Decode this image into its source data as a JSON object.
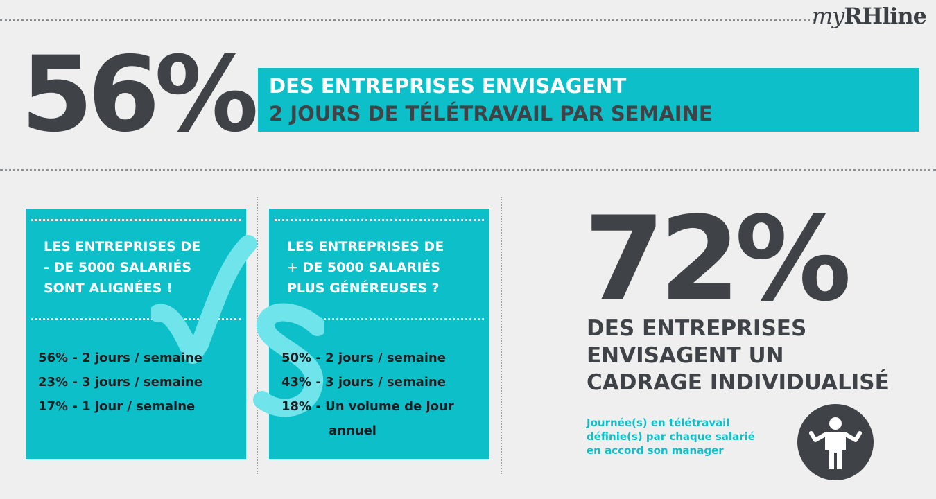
{
  "brand": {
    "prefix": "my",
    "suffix": "RHline"
  },
  "headline": {
    "percent": "56%",
    "line1": "DES ENTREPRISES ENVISAGENT",
    "line2": "2 JOURS DE TÉLÉTRAVAIL PAR SEMAINE"
  },
  "cards": [
    {
      "title": [
        "LES ENTREPRISES DE",
        "- DE 5000 SALARIÉS",
        "SONT ALIGNÉES !"
      ],
      "stats": [
        "56% - 2 jours / semaine",
        "23% - 3 jours / semaine",
        "17% - 1 jour / semaine"
      ]
    },
    {
      "title": [
        "LES ENTREPRISES DE",
        "+ DE 5000 SALARIÉS",
        "PLUS GÉNÉREUSES ?"
      ],
      "stats": [
        "50% - 2 jours / semaine",
        "43% - 3 jours / semaine",
        "18% - Un volume de jour",
        "annuel"
      ]
    }
  ],
  "vs_watermark": "VS",
  "right": {
    "percent": "72%",
    "text": [
      "DES ENTREPRISES",
      "ENVISAGENT UN",
      "CADRAGE INDIVIDUALISÉ"
    ],
    "note": [
      "Journée(s) en télétravail",
      "définie(s) par chaque salarié",
      "en accord son manager"
    ],
    "icon": "person-shrug-icon"
  },
  "colors": {
    "accent": "#0dbfc8",
    "dark": "#3f4347",
    "background": "#efefef",
    "watermark": "#6fe4ea"
  }
}
